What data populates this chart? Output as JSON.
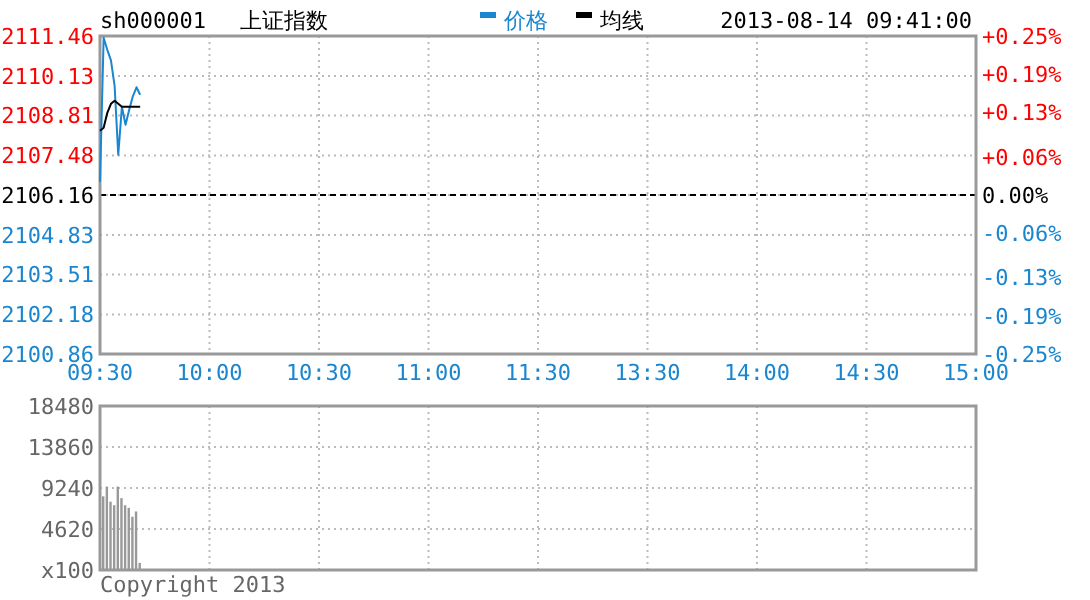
{
  "chart_data": [
    {
      "type": "line",
      "title": "上证指数",
      "subtitle": "sh000001",
      "annotations": [
        "2013-08-14 09:41:00"
      ],
      "legend": "top",
      "grid": true,
      "categories": [
        "09:30",
        null,
        null,
        null,
        null,
        null,
        null,
        null,
        null,
        null,
        null,
        null,
        null,
        null,
        null,
        null,
        null,
        null,
        null,
        null,
        null,
        null,
        null,
        null,
        null,
        null,
        null,
        null,
        null,
        null,
        "10:00",
        null,
        null,
        null,
        null,
        null,
        null,
        null,
        null,
        null,
        null,
        null,
        null,
        null,
        null,
        null,
        null,
        null,
        null,
        null,
        null,
        null,
        null,
        null,
        null,
        null,
        null,
        null,
        null,
        null,
        "10:30",
        null,
        null,
        null,
        null,
        null,
        null,
        null,
        null,
        null,
        null,
        null,
        null,
        null,
        null,
        null,
        null,
        null,
        null,
        null,
        null,
        null,
        null,
        null,
        null,
        null,
        null,
        null,
        null,
        null,
        "11:00",
        null,
        null,
        null,
        null,
        null,
        null,
        null,
        null,
        null,
        null,
        null,
        null,
        null,
        null,
        null,
        null,
        null,
        null,
        null,
        null,
        null,
        null,
        null,
        null,
        null,
        null,
        null,
        null,
        null,
        "11:30",
        null,
        null,
        null,
        null,
        null,
        null,
        null,
        null,
        null,
        null,
        null,
        null,
        null,
        null,
        null,
        null,
        null,
        null,
        null,
        null,
        null,
        null,
        null,
        null,
        null,
        null,
        null,
        null,
        null,
        "13:30",
        null,
        null,
        null,
        null,
        null,
        null,
        null,
        null,
        null,
        null,
        null,
        null,
        null,
        null,
        null,
        null,
        null,
        null,
        null,
        null,
        null,
        null,
        null,
        null,
        null,
        null,
        null,
        null,
        null,
        "14:00",
        null,
        null,
        null,
        null,
        null,
        null,
        null,
        null,
        null,
        null,
        null,
        null,
        null,
        null,
        null,
        null,
        null,
        null,
        null,
        null,
        null,
        null,
        null,
        null,
        null,
        null,
        null,
        null,
        null,
        "14:30",
        null,
        null,
        null,
        null,
        null,
        null,
        null,
        null,
        null,
        null,
        null,
        null,
        null,
        null,
        null,
        null,
        null,
        null,
        null,
        null,
        null,
        null,
        null,
        null,
        null,
        null,
        null,
        null,
        null,
        "15:00"
      ],
      "ylim": [
        2100.86,
        2111.46
      ],
      "yticks": [
        2100.86,
        2102.18,
        2103.51,
        2104.83,
        2106.16,
        2107.48,
        2108.81,
        2110.13,
        2111.46
      ],
      "y2lim": [
        -0.25,
        0.25
      ],
      "y2ticks": [
        {
          "value": -0.25,
          "label": "-0.25%"
        },
        {
          "value": -0.19,
          "label": "-0.19%"
        },
        {
          "value": -0.13,
          "label": "-0.13%"
        },
        {
          "value": -0.06,
          "label": "-0.06%"
        },
        {
          "value": 0,
          "label": "0.00%"
        },
        {
          "value": 0.06,
          "label": "+0.06%"
        },
        {
          "value": 0.13,
          "label": "+0.13%"
        },
        {
          "value": 0.19,
          "label": "+0.19%"
        },
        {
          "value": 0.25,
          "label": "+0.25%"
        }
      ],
      "ref_lines": [
        {
          "axis": "y",
          "value": 2106.16,
          "color": "#000000",
          "line_style": "dashed"
        }
      ],
      "series": [
        {
          "name": "价格",
          "color": "#1a86d0",
          "values": [
            2106.6,
            2111.4,
            2111.0,
            2110.65,
            2109.8,
            2107.5,
            2109.1,
            2108.5,
            2109.0,
            2109.45,
            2109.75,
            2109.5,
            null,
            null,
            null,
            null,
            null,
            null,
            null,
            null,
            null,
            null,
            null,
            null,
            null,
            null,
            null,
            null,
            null,
            null,
            null,
            null,
            null,
            null,
            null,
            null,
            null,
            null,
            null,
            null,
            null,
            null,
            null,
            null,
            null,
            null,
            null,
            null,
            null,
            null,
            null,
            null,
            null,
            null,
            null,
            null,
            null,
            null,
            null,
            null,
            null,
            null,
            null,
            null,
            null,
            null,
            null,
            null,
            null,
            null,
            null,
            null,
            null,
            null,
            null,
            null,
            null,
            null,
            null,
            null,
            null,
            null,
            null,
            null,
            null,
            null,
            null,
            null,
            null,
            null,
            null,
            null,
            null,
            null,
            null,
            null,
            null,
            null,
            null,
            null,
            null,
            null,
            null,
            null,
            null,
            null,
            null,
            null,
            null,
            null,
            null,
            null,
            null,
            null,
            null,
            null,
            null,
            null,
            null,
            null,
            null,
            null,
            null,
            null,
            null,
            null,
            null,
            null,
            null,
            null,
            null,
            null,
            null,
            null,
            null,
            null,
            null,
            null,
            null,
            null,
            null,
            null,
            null,
            null,
            null,
            null,
            null,
            null,
            null,
            null,
            null,
            null,
            null,
            null,
            null,
            null,
            null,
            null,
            null,
            null,
            null,
            null,
            null,
            null,
            null,
            null,
            null,
            null,
            null,
            null,
            null,
            null,
            null,
            null,
            null,
            null,
            null,
            null,
            null,
            null,
            null,
            null,
            null,
            null,
            null,
            null,
            null,
            null,
            null,
            null,
            null,
            null,
            null,
            null,
            null,
            null,
            null,
            null,
            null,
            null,
            null,
            null,
            null,
            null,
            null,
            null,
            null,
            null,
            null,
            null,
            null,
            null,
            null,
            null,
            null,
            null,
            null,
            null,
            null,
            null,
            null,
            null,
            null,
            null,
            null,
            null,
            null,
            null,
            null,
            null,
            null,
            null,
            null,
            null,
            null,
            null,
            null,
            null,
            null,
            null,
            null
          ]
        },
        {
          "name": "均线",
          "color": "#000000",
          "values": [
            2108.3,
            2108.4,
            2108.9,
            2109.2,
            2109.3,
            2109.2,
            2109.1,
            2109.1,
            2109.1,
            2109.1,
            2109.1,
            2109.1,
            null,
            null,
            null,
            null,
            null,
            null,
            null,
            null,
            null,
            null,
            null,
            null,
            null,
            null,
            null,
            null,
            null,
            null,
            null,
            null,
            null,
            null,
            null,
            null,
            null,
            null,
            null,
            null,
            null,
            null,
            null,
            null,
            null,
            null,
            null,
            null,
            null,
            null,
            null,
            null,
            null,
            null,
            null,
            null,
            null,
            null,
            null,
            null,
            null,
            null,
            null,
            null,
            null,
            null,
            null,
            null,
            null,
            null,
            null,
            null,
            null,
            null,
            null,
            null,
            null,
            null,
            null,
            null,
            null,
            null,
            null,
            null,
            null,
            null,
            null,
            null,
            null,
            null,
            null,
            null,
            null,
            null,
            null,
            null,
            null,
            null,
            null,
            null,
            null,
            null,
            null,
            null,
            null,
            null,
            null,
            null,
            null,
            null,
            null,
            null,
            null,
            null,
            null,
            null,
            null,
            null,
            null,
            null,
            null,
            null,
            null,
            null,
            null,
            null,
            null,
            null,
            null,
            null,
            null,
            null,
            null,
            null,
            null,
            null,
            null,
            null,
            null,
            null,
            null,
            null,
            null,
            null,
            null,
            null,
            null,
            null,
            null,
            null,
            null,
            null,
            null,
            null,
            null,
            null,
            null,
            null,
            null,
            null,
            null,
            null,
            null,
            null,
            null,
            null,
            null,
            null,
            null,
            null,
            null,
            null,
            null,
            null,
            null,
            null,
            null,
            null,
            null,
            null,
            null,
            null,
            null,
            null,
            null,
            null,
            null,
            null,
            null,
            null,
            null,
            null,
            null,
            null,
            null,
            null,
            null,
            null,
            null,
            null,
            null,
            null,
            null,
            null,
            null,
            null,
            null,
            null,
            null,
            null,
            null,
            null,
            null,
            null,
            null,
            null,
            null,
            null,
            null,
            null,
            null,
            null,
            null,
            null,
            null,
            null,
            null,
            null,
            null,
            null,
            null,
            null,
            null,
            null,
            null,
            null,
            null,
            null,
            null,
            null,
            null
          ]
        }
      ]
    },
    {
      "type": "bar",
      "annotations": [
        "Copyright 2013"
      ],
      "grid": true,
      "tick_labels": "y",
      "categories": [
        null,
        null,
        null,
        null,
        null,
        null,
        null,
        null,
        null,
        null,
        null,
        null,
        null,
        null,
        null,
        null,
        null,
        null,
        null,
        null,
        null,
        null,
        null,
        null,
        null,
        null,
        null,
        null,
        null,
        null,
        null,
        null,
        null,
        null,
        null,
        null,
        null,
        null,
        null,
        null,
        null,
        null,
        null,
        null,
        null,
        null,
        null,
        null,
        null,
        null,
        null,
        null,
        null,
        null,
        null,
        null,
        null,
        null,
        null,
        null,
        null,
        null,
        null,
        null,
        null,
        null,
        null,
        null,
        null,
        null,
        null,
        null,
        null,
        null,
        null,
        null,
        null,
        null,
        null,
        null,
        null,
        null,
        null,
        null,
        null,
        null,
        null,
        null,
        null,
        null,
        null,
        null,
        null,
        null,
        null,
        null,
        null,
        null,
        null,
        null,
        null,
        null,
        null,
        null,
        null,
        null,
        null,
        null,
        null,
        null,
        null,
        null,
        null,
        null,
        null,
        null,
        null,
        null,
        null,
        null,
        null,
        null,
        null,
        null,
        null,
        null,
        null,
        null,
        null,
        null,
        null,
        null,
        null,
        null,
        null,
        null,
        null,
        null,
        null,
        null,
        null,
        null,
        null,
        null,
        null,
        null,
        null,
        null,
        null,
        null,
        null,
        null,
        null,
        null,
        null,
        null,
        null,
        null,
        null,
        null,
        null,
        null,
        null,
        null,
        null,
        null,
        null,
        null,
        null,
        null,
        null,
        null,
        null,
        null,
        null,
        null,
        null,
        null,
        null,
        null,
        null,
        null,
        null,
        null,
        null,
        null,
        null,
        null,
        null,
        null,
        null,
        null,
        null,
        null,
        null,
        null,
        null,
        null,
        null,
        null,
        null,
        null,
        null,
        null,
        null,
        null,
        null,
        null,
        null,
        null,
        null,
        null,
        null,
        null,
        null,
        null,
        null,
        null,
        null,
        null,
        null,
        null,
        null,
        null,
        null,
        null,
        null,
        null,
        null,
        null,
        null,
        null,
        null,
        null,
        null,
        null,
        null,
        null,
        null,
        null,
        null
      ],
      "ylim": [
        0,
        18480
      ],
      "yticks": [
        {
          "value": 0,
          "label": "x100"
        },
        4620,
        9240,
        13860,
        18480
      ],
      "series": [
        {
          "color": "#999999",
          "values": [
            8300,
            9400,
            7700,
            7300,
            9400,
            8100,
            7300,
            7000,
            6000,
            6600,
            800,
            null,
            null,
            null,
            null,
            null,
            null,
            null,
            null,
            null,
            null,
            null,
            null,
            null,
            null,
            null,
            null,
            null,
            null,
            null,
            null,
            null,
            null,
            null,
            null,
            null,
            null,
            null,
            null,
            null,
            null,
            null,
            null,
            null,
            null,
            null,
            null,
            null,
            null,
            null,
            null,
            null,
            null,
            null,
            null,
            null,
            null,
            null,
            null,
            null,
            null,
            null,
            null,
            null,
            null,
            null,
            null,
            null,
            null,
            null,
            null,
            null,
            null,
            null,
            null,
            null,
            null,
            null,
            null,
            null,
            null,
            null,
            null,
            null,
            null,
            null,
            null,
            null,
            null,
            null,
            null,
            null,
            null,
            null,
            null,
            null,
            null,
            null,
            null,
            null,
            null,
            null,
            null,
            null,
            null,
            null,
            null,
            null,
            null,
            null,
            null,
            null,
            null,
            null,
            null,
            null,
            null,
            null,
            null,
            null,
            null,
            null,
            null,
            null,
            null,
            null,
            null,
            null,
            null,
            null,
            null,
            null,
            null,
            null,
            null,
            null,
            null,
            null,
            null,
            null,
            null,
            null,
            null,
            null,
            null,
            null,
            null,
            null,
            null,
            null,
            null,
            null,
            null,
            null,
            null,
            null,
            null,
            null,
            null,
            null,
            null,
            null,
            null,
            null,
            null,
            null,
            null,
            null,
            null,
            null,
            null,
            null,
            null,
            null,
            null,
            null,
            null,
            null,
            null,
            null,
            null,
            null,
            null,
            null,
            null,
            null,
            null,
            null,
            null,
            null,
            null,
            null,
            null,
            null,
            null,
            null,
            null,
            null,
            null,
            null,
            null,
            null,
            null,
            null,
            null,
            null,
            null,
            null,
            null,
            null,
            null,
            null,
            null,
            null,
            null,
            null,
            null,
            null,
            null,
            null,
            null,
            null,
            null,
            null,
            null,
            null,
            null,
            null,
            null,
            null,
            null,
            null,
            null,
            null,
            null,
            null,
            null,
            null,
            null,
            null,
            null
          ]
        }
      ]
    }
  ]
}
